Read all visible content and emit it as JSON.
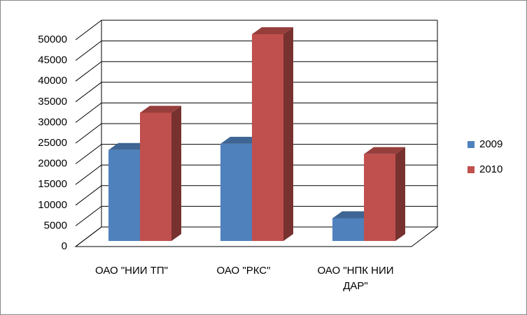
{
  "chart_data": {
    "type": "bar3d",
    "categories": [
      "ОАО \"НИИ ТП\"",
      "ОАО \"РКС\"",
      "ОАО \"НПК НИИ ДАР\""
    ],
    "series": [
      {
        "name": "2009",
        "color": "#4f81bd",
        "values": [
          22000,
          23500,
          5500
        ]
      },
      {
        "name": "2010",
        "color": "#c0504d",
        "values": [
          31000,
          50000,
          21000
        ]
      }
    ],
    "ylim": [
      0,
      50000
    ],
    "yticks": [
      0,
      5000,
      10000,
      15000,
      20000,
      25000,
      30000,
      35000,
      40000,
      45000,
      50000
    ],
    "grid": true,
    "legend": "right"
  }
}
